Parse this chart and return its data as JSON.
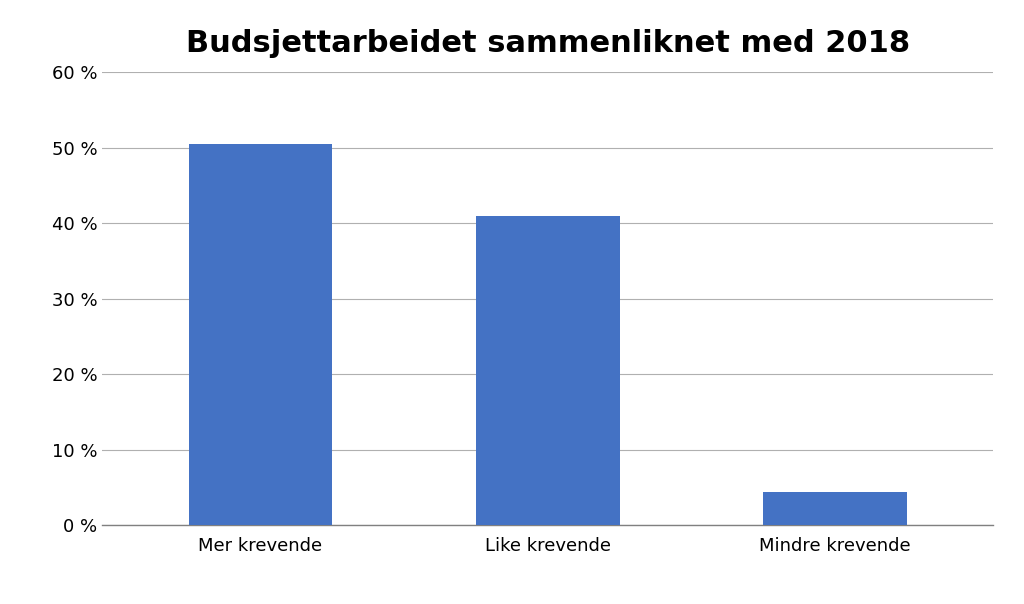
{
  "title": "Budsjettarbeidet sammenliknet med 2018",
  "categories": [
    "Mer krevende",
    "Like krevende",
    "Mindre krevende"
  ],
  "values": [
    50.5,
    41.0,
    4.5
  ],
  "bar_color": "#4472C4",
  "ylim": [
    0,
    60
  ],
  "yticks": [
    0,
    10,
    20,
    30,
    40,
    50,
    60
  ],
  "ytick_labels": [
    "0 %",
    "10 %",
    "20 %",
    "30 %",
    "40 %",
    "50 %",
    "60 %"
  ],
  "title_fontsize": 22,
  "tick_fontsize": 13,
  "background_color": "#ffffff",
  "bar_width": 0.5,
  "figsize": [
    10.24,
    6.04
  ],
  "dpi": 100
}
